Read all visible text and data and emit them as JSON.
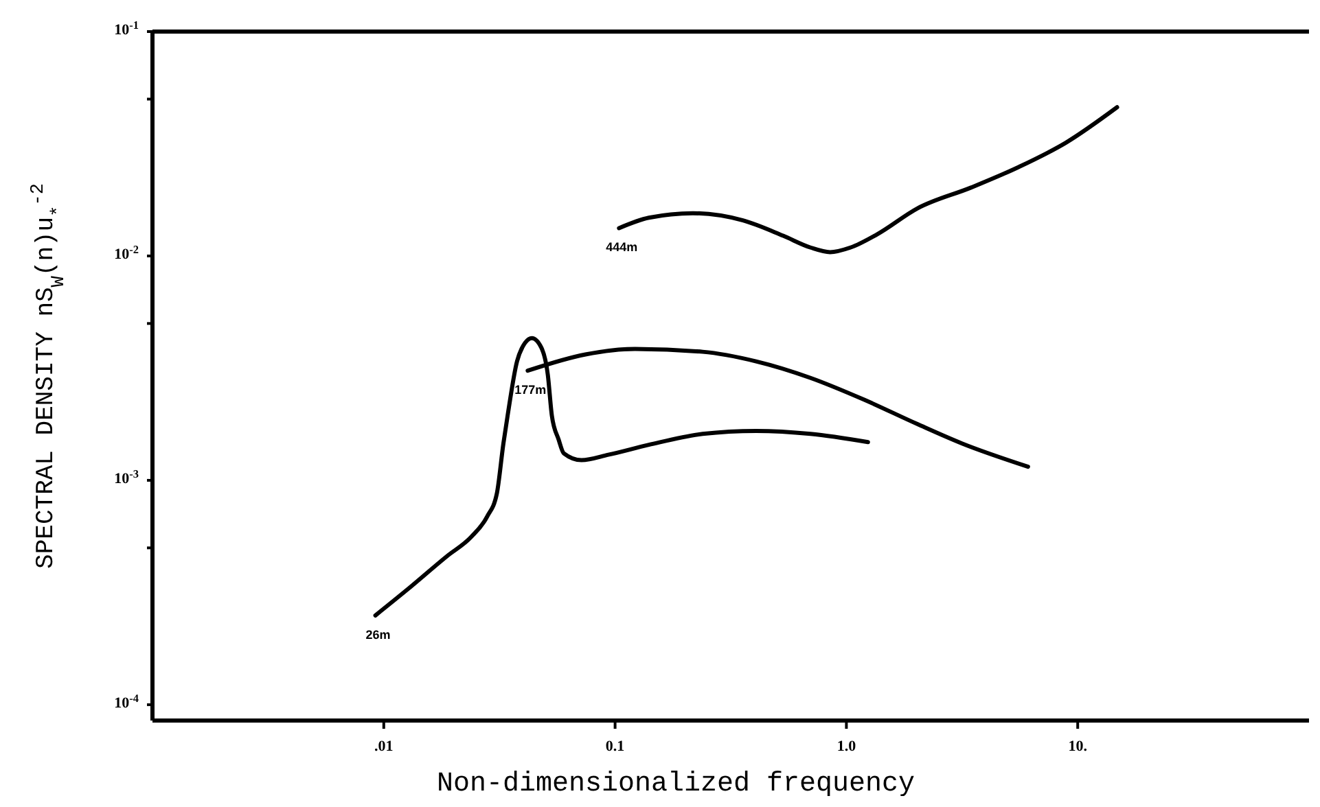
{
  "chart_data": {
    "type": "line",
    "xlabel": "Non-dimensionalized frequency",
    "ylabel": "SPECTRAL DENSITY nS$_{W}$(n)u$_{*}$$^{-2}$",
    "log": "xy",
    "xlim": [
      0.001,
      100
    ],
    "ylim": [
      8.5e-05,
      0.1
    ],
    "xticks": [
      {
        "value": 0.01,
        "label": ".01"
      },
      {
        "value": 0.1,
        "label": "0.1"
      },
      {
        "value": 1,
        "label": "1.0"
      },
      {
        "value": 10,
        "label": "10."
      }
    ],
    "yticks": [
      {
        "value": 0.0001,
        "label": "10$^{-4}$"
      },
      {
        "value": 0.0005,
        "label": null
      },
      {
        "value": 0.001,
        "label": "10$^{-3}$"
      },
      {
        "value": 0.005,
        "label": null
      },
      {
        "value": 0.01,
        "label": "10$^{-2}$"
      },
      {
        "value": 0.05,
        "label": null
      },
      {
        "value": 0.1,
        "label": "10$^{-1}$"
      }
    ],
    "grid": false,
    "legend": false,
    "marker": "none",
    "line_style": "solid",
    "series": [
      {
        "name": "26m",
        "color": "#000000",
        "x": [
          0.0092,
          0.0126,
          0.0188,
          0.0239,
          0.028,
          0.0308,
          0.0329,
          0.0343,
          0.0377,
          0.0402,
          0.0437,
          0.048,
          0.0512,
          0.0533,
          0.057,
          0.06,
          0.0716,
          0.0935,
          0.14,
          0.239,
          0.407,
          0.7,
          1.24
        ],
        "values": [
          0.00025,
          0.000325,
          0.00046,
          0.00056,
          0.00069,
          0.00087,
          0.00146,
          0.00194,
          0.0034,
          0.004,
          0.0043,
          0.0039,
          0.00295,
          0.00194,
          0.00152,
          0.00132,
          0.00123,
          0.0013,
          0.00144,
          0.00161,
          0.00166,
          0.00161,
          0.00148
        ]
      },
      {
        "name": "177m",
        "color": "#000000",
        "x": [
          0.0419,
          0.0745,
          0.122,
          0.239,
          0.407,
          0.7,
          1.19,
          2.03,
          3.16,
          6.1
        ],
        "values": [
          0.00308,
          0.00364,
          0.00385,
          0.00374,
          0.00339,
          0.00286,
          0.00229,
          0.00178,
          0.00146,
          0.00115
        ]
      },
      {
        "name": "444m",
        "color": "#000000",
        "x": [
          0.104,
          0.14,
          0.217,
          0.357,
          0.533,
          0.7,
          0.85,
          1.04,
          1.36,
          2.03,
          3.47,
          5.55,
          8.9,
          14.8
        ],
        "values": [
          0.0133,
          0.0148,
          0.0155,
          0.0144,
          0.0123,
          0.0109,
          0.0104,
          0.0109,
          0.0125,
          0.0163,
          0.0202,
          0.0249,
          0.032,
          0.046
        ]
      }
    ]
  }
}
